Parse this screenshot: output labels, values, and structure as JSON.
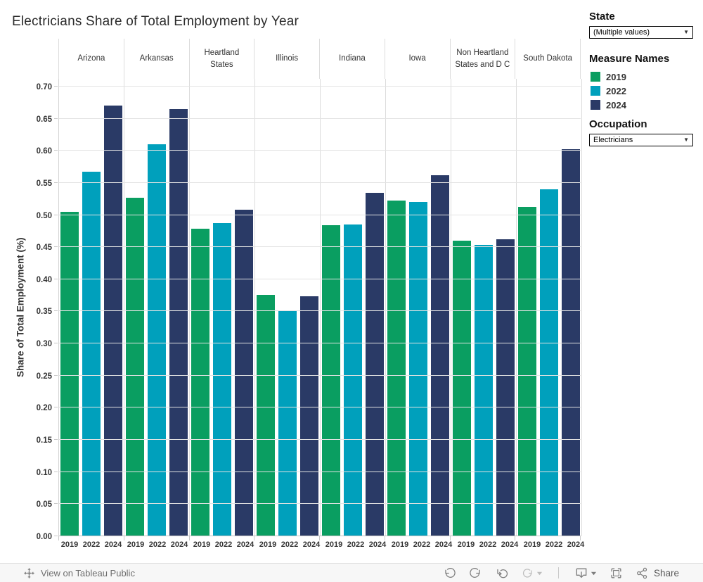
{
  "title": "Electricians Share of Total Employment by Year",
  "chart_data": {
    "type": "bar",
    "title": "Electricians Share of Total Employment by Year",
    "xlabel": "",
    "ylabel": "Share of Total Employment (%)",
    "categories": [
      "Arizona",
      "Arkansas",
      "Heartland States",
      "Illinois",
      "Indiana",
      "Iowa",
      "Non Heartland States and D C",
      "South Dakota"
    ],
    "x_labels_per_group": [
      "2019",
      "2022",
      "2024"
    ],
    "series": [
      {
        "name": "2019",
        "color": "#0a9e61",
        "values": [
          0.505,
          0.527,
          0.479,
          0.376,
          0.484,
          0.522,
          0.46,
          0.513
        ]
      },
      {
        "name": "2022",
        "color": "#00a0bc",
        "values": [
          0.567,
          0.61,
          0.487,
          0.352,
          0.485,
          0.52,
          0.453,
          0.54
        ]
      },
      {
        "name": "2024",
        "color": "#2a3a66",
        "values": [
          0.67,
          0.665,
          0.508,
          0.374,
          0.535,
          0.562,
          0.462,
          0.602
        ]
      }
    ],
    "ylim": [
      0,
      0.712
    ],
    "yticks": [
      "0.00",
      "0.05",
      "0.10",
      "0.15",
      "0.20",
      "0.25",
      "0.30",
      "0.35",
      "0.40",
      "0.45",
      "0.50",
      "0.55",
      "0.60",
      "0.65",
      "0.70"
    ],
    "grid": true,
    "legend_position": "right"
  },
  "filters": {
    "state": {
      "label": "State",
      "value": "(Multiple values)"
    },
    "occupation": {
      "label": "Occupation",
      "value": "Electricians"
    }
  },
  "legend": {
    "title": "Measure Names",
    "items": [
      {
        "label": "2019",
        "color": "#0a9e61"
      },
      {
        "label": "2022",
        "color": "#00a0bc"
      },
      {
        "label": "2024",
        "color": "#2a3a66"
      }
    ]
  },
  "toolbar": {
    "view_text": "View on Tableau Public",
    "share_label": "Share",
    "icons": [
      "tableau-logo",
      "undo",
      "redo",
      "reset",
      "refresh",
      "download",
      "fullscreen",
      "share"
    ]
  }
}
